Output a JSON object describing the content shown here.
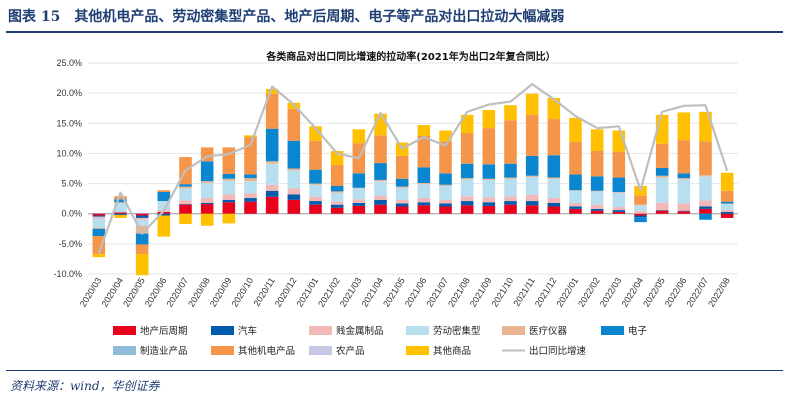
{
  "figure": {
    "title": "图表 15　其他机电产品、劳动密集型产品、地产后周期、电子等产品对出口拉动大幅减弱",
    "source": "资料来源：wind，华创证券"
  },
  "chart_data": {
    "type": "bar",
    "stacked": true,
    "title": "各类商品对出口同比增速的拉动率(2021年为出口2年复合同比）",
    "xlabel": "",
    "ylabel": "",
    "ylim": [
      -10,
      25
    ],
    "yticks": [
      "-10.0%",
      "-5.0%",
      "0.0%",
      "5.0%",
      "10.0%",
      "15.0%",
      "20.0%",
      "25.0%"
    ],
    "legend_position": "bottom",
    "categories": [
      "2020/03",
      "2020/04",
      "2020/05",
      "2020/06",
      "2020/07",
      "2020/08",
      "2020/09",
      "2020/10",
      "2020/11",
      "2020/12",
      "2021/01",
      "2021/02",
      "2021/03",
      "2021/04",
      "2021/05",
      "2021/06",
      "2021/07",
      "2021/08",
      "2021/09",
      "2021/10",
      "2021/11",
      "2021/12",
      "2022/01",
      "2022/02",
      "2022/03",
      "2022/04",
      "2022/05",
      "2022/06",
      "2022/07",
      "2022/08"
    ],
    "series": [
      {
        "name": "地产后周期",
        "color": "#e8001c",
        "values": [
          -0.3,
          0.2,
          -0.3,
          0.3,
          1.5,
          1.6,
          1.9,
          2.0,
          2.8,
          2.3,
          1.5,
          1.0,
          1.3,
          1.5,
          1.2,
          1.4,
          1.2,
          1.4,
          1.3,
          1.5,
          1.4,
          1.2,
          0.8,
          0.5,
          0.3,
          -0.3,
          0.5,
          0.4,
          0.8,
          -0.7
        ]
      },
      {
        "name": "汽车",
        "color": "#005bac",
        "values": [
          -0.2,
          -0.2,
          -0.4,
          -0.3,
          0.1,
          0.2,
          0.4,
          0.6,
          1.0,
          0.9,
          0.6,
          0.5,
          0.5,
          0.8,
          0.5,
          0.5,
          0.5,
          0.7,
          0.6,
          0.6,
          0.7,
          0.6,
          0.4,
          0.3,
          0.3,
          -0.3,
          0.1,
          0.1,
          0.4,
          0.3
        ]
      },
      {
        "name": "贱金属制品",
        "color": "#f2b8b8",
        "values": [
          -0.3,
          0.1,
          -0.3,
          0.3,
          0.6,
          0.8,
          0.9,
          0.8,
          1.0,
          1.0,
          0.7,
          0.5,
          0.6,
          0.7,
          0.6,
          0.7,
          0.6,
          0.8,
          0.8,
          0.8,
          1.0,
          0.8,
          0.6,
          0.7,
          0.5,
          0.4,
          1.2,
          1.2,
          1.0,
          0.3
        ]
      },
      {
        "name": "劳动密集型",
        "color": "#b8dff0",
        "values": [
          -1.5,
          1.5,
          -1.0,
          1.5,
          2.0,
          2.5,
          2.3,
          2.0,
          3.5,
          3.0,
          2.0,
          1.5,
          1.8,
          2.4,
          2.0,
          2.3,
          2.3,
          2.8,
          2.9,
          2.9,
          3.0,
          3.2,
          2.0,
          2.2,
          2.4,
          1.0,
          4.2,
          4.0,
          4.0,
          1.0
        ]
      },
      {
        "name": "医疗仪器",
        "color": "#e8b58e",
        "values": [
          -0.2,
          0.1,
          -1.3,
          0.0,
          0.3,
          0.3,
          0.3,
          0.5,
          0.4,
          0.3,
          0.2,
          0.2,
          0.1,
          0.2,
          0.2,
          0.2,
          0.2,
          0.2,
          0.2,
          0.2,
          0.2,
          0.2,
          0.1,
          0.1,
          0.1,
          0.1,
          0.3,
          0.2,
          0.2,
          0.1
        ]
      },
      {
        "name": "电子",
        "color": "#0a86d0",
        "values": [
          -1.2,
          0.5,
          -1.8,
          1.5,
          0.4,
          3.3,
          0.8,
          0.6,
          5.4,
          4.6,
          2.3,
          0.9,
          2.4,
          2.8,
          1.3,
          2.6,
          1.9,
          2.4,
          2.4,
          2.3,
          3.3,
          3.7,
          2.6,
          2.4,
          2.4,
          -0.8,
          1.3,
          0.8,
          -1.0,
          0.3
        ]
      },
      {
        "name": "制造业产品",
        "color": "#8fbad8",
        "values": [
          0,
          0,
          0,
          0,
          0,
          0,
          0,
          0,
          0,
          0,
          0,
          0,
          0,
          0,
          0,
          0,
          0,
          0,
          0,
          0,
          0,
          0,
          0,
          0,
          0,
          0,
          0,
          0,
          0,
          0
        ]
      },
      {
        "name": "其他机电产品",
        "color": "#f4954a",
        "values": [
          -3.0,
          0.5,
          -1.6,
          0.3,
          4.5,
          2.3,
          4.4,
          6.2,
          5.8,
          5.3,
          4.8,
          3.5,
          5.0,
          4.6,
          3.8,
          5.2,
          5.3,
          5.1,
          6.0,
          7.2,
          6.8,
          6.0,
          5.4,
          4.2,
          4.3,
          1.5,
          4.0,
          5.5,
          5.6,
          1.8
        ]
      },
      {
        "name": "农产品",
        "color": "#c5c8e3",
        "values": [
          0,
          0,
          0,
          0,
          0,
          0,
          0,
          0,
          0,
          0,
          0,
          0,
          0,
          0,
          0,
          0,
          0,
          0,
          0,
          0,
          0,
          0,
          0,
          0,
          0,
          0,
          0,
          0,
          0,
          0
        ]
      },
      {
        "name": "其他商品",
        "color": "#ffc000",
        "values": [
          -0.5,
          -0.5,
          -3.5,
          -3.5,
          -1.7,
          -2.0,
          -1.6,
          0.3,
          0.8,
          1.0,
          2.4,
          2.3,
          2.3,
          3.6,
          2.2,
          1.8,
          1.8,
          3.0,
          3.0,
          2.5,
          3.5,
          3.5,
          4.0,
          3.6,
          3.5,
          1.6,
          4.8,
          4.6,
          4.9,
          3.0
        ]
      }
    ],
    "line": {
      "name": "出口同比增速",
      "color": "#bfbfbf",
      "values": [
        -6.6,
        3.5,
        -3.3,
        0.5,
        7.2,
        9.5,
        9.9,
        11.4,
        21.1,
        18.1,
        14.2,
        10.0,
        9.2,
        16.7,
        10.8,
        12.7,
        11.3,
        16.9,
        18.1,
        18.6,
        21.5,
        19.0,
        16.2,
        14.2,
        14.5,
        3.9,
        16.9,
        17.9,
        18.0,
        7.1
      ]
    }
  }
}
